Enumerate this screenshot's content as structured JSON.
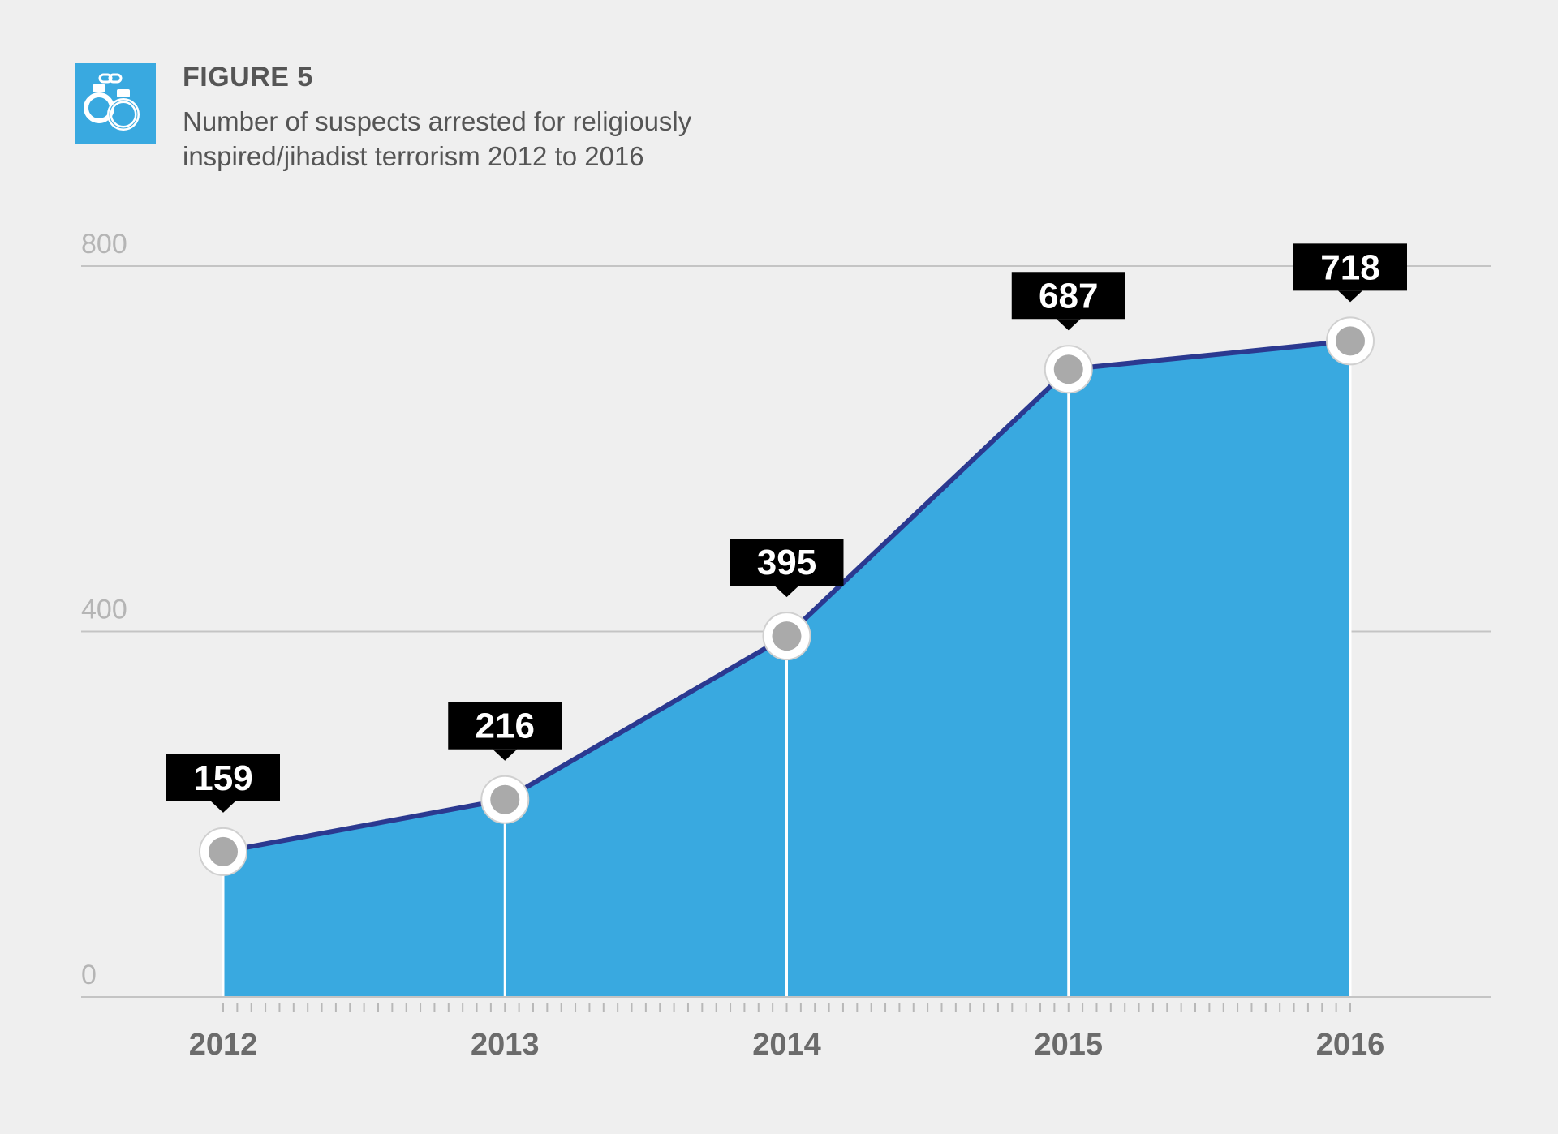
{
  "header": {
    "icon": "handcuffs-icon",
    "figure_label": "FIGURE 5",
    "title": "Number of suspects arrested for religiously inspired/jihadist terrorism 2012 to 2016"
  },
  "colors": {
    "accent": "#39a9e0",
    "line": "#2b3990",
    "label_box": "#000000",
    "marker_fill": "#aaaaaa",
    "gridline": "#c4c4c4",
    "background": "#efefef"
  },
  "chart_data": {
    "type": "area",
    "title": "Number of suspects arrested for religiously inspired/jihadist terrorism 2012 to 2016",
    "xlabel": "",
    "ylabel": "",
    "categories": [
      "2012",
      "2013",
      "2014",
      "2015",
      "2016"
    ],
    "values": [
      159,
      216,
      395,
      687,
      718
    ],
    "value_labels": [
      "159",
      "216",
      "395",
      "687",
      "718"
    ],
    "ylim": [
      0,
      800
    ],
    "yticks": [
      0,
      400,
      800
    ],
    "ytick_labels": [
      "0",
      "400",
      "800"
    ],
    "grid": true,
    "legend": "none"
  }
}
